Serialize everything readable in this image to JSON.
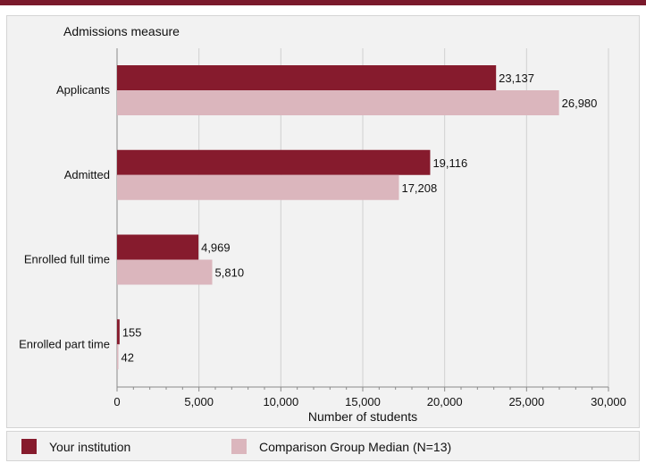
{
  "chart_data": {
    "type": "bar",
    "orientation": "horizontal",
    "ylabel": "Admissions measure",
    "xlabel": "Number of students",
    "categories": [
      "Applicants",
      "Admitted",
      "Enrolled full time",
      "Enrolled part time"
    ],
    "series": [
      {
        "name": "Your institution",
        "values": [
          23137,
          19116,
          4969,
          155
        ],
        "labels": [
          "23,137",
          "19,116",
          "4,969",
          "155"
        ],
        "color": "#861b2d"
      },
      {
        "name": "Comparison Group Median (N=13)",
        "values": [
          26980,
          17208,
          5810,
          42
        ],
        "labels": [
          "26,980",
          "17,208",
          "5,810",
          "42"
        ],
        "color": "#dbb6bd"
      }
    ],
    "xlim": [
      0,
      30000
    ],
    "xticks": [
      0,
      5000,
      10000,
      15000,
      20000,
      25000,
      30000
    ],
    "xtick_labels": [
      "0",
      "5,000",
      "10,000",
      "15,000",
      "20,000",
      "25,000",
      "30,000"
    ],
    "grid": true,
    "legend_position": "bottom"
  },
  "colors": {
    "header_rule": "#7a1a2c",
    "panel_background": "#f2f2f2",
    "gridline": "#d0d0d0"
  }
}
